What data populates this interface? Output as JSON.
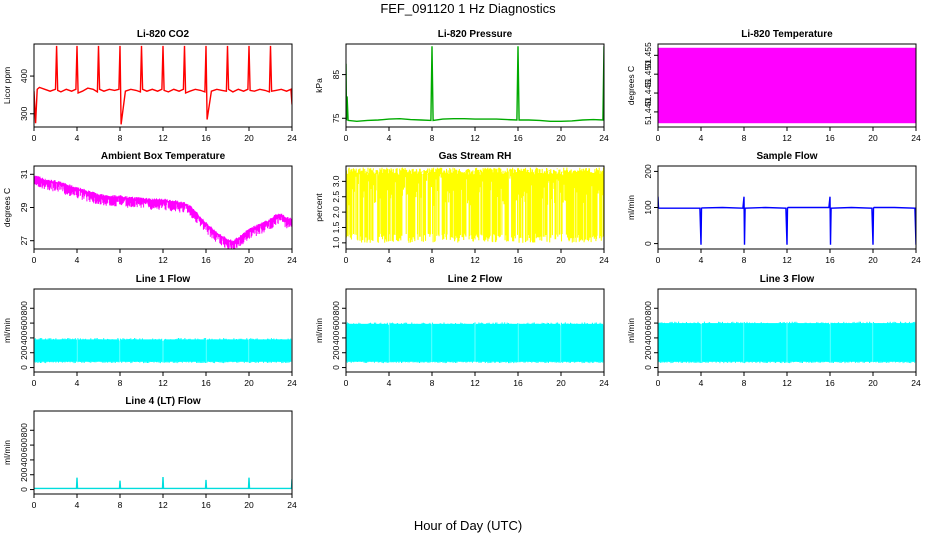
{
  "figure": {
    "title": "FEF_091120  1 Hz Diagnostics",
    "xlabel": "Hour of Day (UTC)"
  },
  "chart_data": [
    {
      "type": "line",
      "title": "Li-820 CO2",
      "ylabel": "Licor ppm",
      "color": "#ff0000",
      "xlim": [
        0,
        24
      ],
      "ylim": [
        265,
        485
      ],
      "xticks": [
        0,
        4,
        8,
        12,
        16,
        20,
        24
      ],
      "yticks": [
        300,
        400
      ],
      "series": [
        {
          "x": [
            0,
            0.15,
            0.3,
            0.5,
            1,
            1.5,
            2,
            2.1,
            2.2,
            2.5,
            3,
            3.5,
            3.9,
            4,
            4.1,
            4.5,
            5,
            5.5,
            5.9,
            6,
            6.1,
            6.5,
            7,
            7.5,
            7.9,
            8,
            8.1,
            8.5,
            9,
            9.5,
            9.9,
            10,
            10.1,
            10.5,
            11,
            11.5,
            11.9,
            12,
            12.1,
            12.5,
            13,
            13.5,
            13.9,
            14,
            14.1,
            14.5,
            15,
            15.5,
            15.9,
            16,
            16.1,
            16.5,
            17,
            17.5,
            17.9,
            18,
            18.1,
            18.5,
            19,
            19.5,
            19.9,
            20,
            20.1,
            20.5,
            21,
            21.5,
            21.9,
            22,
            22.1,
            22.5,
            23,
            23.5,
            23.9,
            24
          ],
          "y": [
            360,
            275,
            365,
            370,
            365,
            360,
            365,
            480,
            362,
            358,
            365,
            360,
            365,
            480,
            355,
            360,
            368,
            365,
            358,
            480,
            365,
            360,
            365,
            362,
            365,
            480,
            272,
            360,
            365,
            362,
            358,
            480,
            365,
            360,
            365,
            360,
            365,
            480,
            362,
            358,
            365,
            360,
            365,
            480,
            355,
            360,
            365,
            362,
            358,
            480,
            285,
            360,
            365,
            362,
            360,
            480,
            365,
            358,
            365,
            360,
            365,
            480,
            362,
            360,
            365,
            362,
            358,
            480,
            360,
            362,
            365,
            360,
            365,
            325
          ]
        }
      ]
    },
    {
      "type": "line",
      "title": "Li-820 Pressure",
      "ylabel": "kPa",
      "color": "#00aa00",
      "xlim": [
        0,
        24
      ],
      "ylim": [
        73,
        92
      ],
      "xticks": [
        0,
        4,
        8,
        12,
        16,
        20,
        24
      ],
      "yticks": [
        75,
        85
      ],
      "series": [
        {
          "x": [
            0,
            0.05,
            0.1,
            0.2,
            1,
            2,
            3,
            4,
            5,
            6,
            7,
            7.9,
            8,
            8.1,
            9,
            10,
            11,
            12,
            13,
            14,
            15,
            15.9,
            16,
            16.1,
            17,
            18,
            19,
            20,
            21,
            22,
            23,
            23.9,
            24
          ],
          "y": [
            87.5,
            74.5,
            80,
            74.5,
            74.3,
            74.5,
            74.6,
            74.8,
            74.9,
            74.7,
            74.6,
            74.5,
            91.5,
            74.5,
            74.8,
            74.9,
            74.9,
            74.8,
            74.8,
            74.8,
            74.7,
            74.6,
            91.5,
            74.6,
            74.6,
            74.5,
            74.3,
            74.3,
            74.4,
            74.6,
            74.7,
            74.6,
            91.5
          ]
        }
      ]
    },
    {
      "type": "area",
      "title": "Li-820 Temperature",
      "ylabel": "degrees C",
      "color": "#ff00ff",
      "xlim": [
        0,
        24
      ],
      "ylim": [
        51.436,
        51.458
      ],
      "xticks": [
        0,
        4,
        8,
        12,
        16,
        20,
        24
      ],
      "yticks": [
        51.44,
        51.445,
        51.45,
        51.455
      ],
      "yticklabels": [
        "51.440",
        "51.445",
        "51.450",
        "51.455"
      ],
      "series": [
        {
          "x": [
            0,
            24
          ],
          "y_min": [
            51.437,
            51.437
          ],
          "y_max": [
            51.457,
            51.457
          ]
        }
      ]
    },
    {
      "type": "line",
      "title": "Ambient Box Temperature",
      "ylabel": "degrees C",
      "color": "#ff00ff",
      "band": 0.55,
      "xlim": [
        0,
        24
      ],
      "ylim": [
        26.5,
        31.5
      ],
      "xticks": [
        0,
        4,
        8,
        12,
        16,
        20,
        24
      ],
      "yticks": [
        27,
        29,
        31
      ],
      "series": [
        {
          "x": [
            0,
            0.3,
            1,
            2,
            3,
            4,
            5,
            6,
            7,
            8,
            9,
            10,
            11,
            12,
            13,
            14,
            14.5,
            15,
            15.5,
            16,
            16.5,
            17,
            17.5,
            18,
            18.5,
            19,
            20,
            21,
            22,
            22.5,
            23,
            23.5,
            24
          ],
          "y": [
            30.8,
            30.8,
            30.6,
            30.5,
            30.3,
            30.1,
            29.9,
            29.7,
            29.6,
            29.6,
            29.5,
            29.5,
            29.4,
            29.4,
            29.3,
            29.2,
            29.0,
            28.7,
            28.3,
            28.0,
            27.7,
            27.4,
            27.2,
            27.0,
            26.9,
            27.1,
            27.6,
            27.9,
            28.2,
            28.5,
            28.5,
            28.3,
            28.2
          ]
        }
      ]
    },
    {
      "type": "area",
      "title": "Gas Stream RH",
      "ylabel": "percent",
      "color": "#ffff00",
      "xlim": [
        0,
        24
      ],
      "ylim": [
        0.8,
        3.5
      ],
      "xticks": [
        0,
        4,
        8,
        12,
        16,
        20,
        24
      ],
      "yticks": [
        1,
        1.5,
        2,
        2.5,
        3
      ],
      "yticklabels": [
        "1.0",
        "1.5",
        "2.0",
        "2.5",
        "3.0"
      ],
      "series": [
        {
          "x": [
            0,
            24
          ],
          "y_min": [
            1.0,
            1.0
          ],
          "y_max": [
            3.45,
            3.4
          ]
        }
      ]
    },
    {
      "type": "line",
      "title": "Sample Flow",
      "ylabel": "ml/min",
      "color": "#0000ff",
      "xlim": [
        0,
        24
      ],
      "ylim": [
        -15,
        215
      ],
      "xticks": [
        0,
        4,
        8,
        12,
        16,
        20,
        24
      ],
      "yticks": [
        0,
        100,
        200
      ],
      "series": [
        {
          "x": [
            0,
            0.05,
            0.1,
            2,
            3.9,
            4,
            4.05,
            4.1,
            6,
            7.9,
            8,
            8.05,
            8.1,
            10,
            11.9,
            12,
            12.05,
            12.1,
            14,
            15.9,
            16,
            16.05,
            16.1,
            18,
            19.9,
            20,
            20.05,
            20.1,
            22,
            23.9,
            24
          ],
          "y": [
            130,
            100,
            98,
            98,
            98,
            -3,
            98,
            99,
            100,
            98,
            130,
            -3,
            98,
            100,
            98,
            -3,
            98,
            100,
            100,
            100,
            130,
            -3,
            98,
            100,
            98,
            -3,
            98,
            100,
            100,
            98,
            -3
          ]
        }
      ]
    },
    {
      "type": "area",
      "title": "Line 1 Flow",
      "ylabel": "ml/min",
      "color": "#00ffff",
      "xlim": [
        0,
        24
      ],
      "ylim": [
        -60,
        1060
      ],
      "xticks": [
        0,
        4,
        8,
        12,
        16,
        20,
        24
      ],
      "yticks": [
        0,
        200,
        400,
        600,
        800
      ],
      "gaps": [
        4,
        8,
        12,
        16,
        20
      ],
      "series": [
        {
          "x": [
            0,
            24
          ],
          "y_min": [
            80,
            80
          ],
          "y_max": [
            380,
            380
          ]
        }
      ]
    },
    {
      "type": "area",
      "title": "Line 2 Flow",
      "ylabel": "ml/min",
      "color": "#00ffff",
      "xlim": [
        0,
        24
      ],
      "ylim": [
        -60,
        1060
      ],
      "xticks": [
        0,
        4,
        8,
        12,
        16,
        20,
        24
      ],
      "yticks": [
        0,
        200,
        400,
        600,
        800
      ],
      "gaps": [
        4,
        8,
        12,
        16,
        20
      ],
      "series": [
        {
          "x": [
            0,
            24
          ],
          "y_min": [
            80,
            80
          ],
          "y_max": [
            590,
            590
          ]
        }
      ]
    },
    {
      "type": "area",
      "title": "Line 3 Flow",
      "ylabel": "ml/min",
      "color": "#00ffff",
      "xlim": [
        0,
        24
      ],
      "ylim": [
        -60,
        1060
      ],
      "xticks": [
        0,
        4,
        8,
        12,
        16,
        20,
        24
      ],
      "yticks": [
        0,
        200,
        400,
        600,
        800
      ],
      "gaps": [
        4,
        8,
        12,
        16,
        20
      ],
      "series": [
        {
          "x": [
            0,
            24
          ],
          "y_min": [
            80,
            80
          ],
          "y_max": [
            600,
            600
          ]
        }
      ]
    },
    {
      "type": "line",
      "title": "Line 4 (LT) Flow",
      "ylabel": "ml/min",
      "color": "#00dddd",
      "xlim": [
        0,
        24
      ],
      "ylim": [
        -60,
        1060
      ],
      "xticks": [
        0,
        4,
        8,
        12,
        16,
        20,
        24
      ],
      "yticks": [
        0,
        200,
        400,
        600,
        800
      ],
      "series": [
        {
          "x": [
            0,
            3.95,
            4,
            4.05,
            7.95,
            8,
            8.05,
            11.95,
            12,
            12.05,
            15.95,
            16,
            16.05,
            19.95,
            20,
            20.05,
            23.95,
            24
          ],
          "y": [
            15,
            15,
            160,
            15,
            15,
            120,
            15,
            15,
            170,
            15,
            15,
            130,
            15,
            15,
            160,
            15,
            15,
            140
          ]
        }
      ]
    }
  ]
}
